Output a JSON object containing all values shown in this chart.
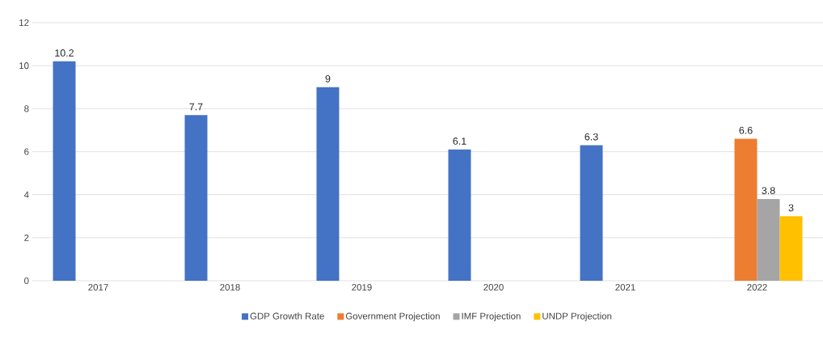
{
  "chart_data": {
    "type": "bar",
    "categories": [
      "2017",
      "2018",
      "2019",
      "2020",
      "2021",
      "2022"
    ],
    "series": [
      {
        "name": "GDP Growth Rate",
        "color": "#4472c4",
        "values": [
          10.2,
          7.7,
          9,
          6.1,
          6.3,
          null
        ]
      },
      {
        "name": "Government Projection",
        "color": "#ed7d31",
        "values": [
          null,
          null,
          null,
          null,
          null,
          6.6
        ]
      },
      {
        "name": "IMF Projection",
        "color": "#a5a5a5",
        "values": [
          null,
          null,
          null,
          null,
          null,
          3.8
        ]
      },
      {
        "name": "UNDP Projection",
        "color": "#ffc000",
        "values": [
          null,
          null,
          null,
          null,
          null,
          3
        ]
      }
    ],
    "ylim": [
      0,
      12
    ],
    "yticks": [
      0,
      2,
      4,
      6,
      8,
      10,
      12
    ],
    "grid": "y",
    "legend": "bottom",
    "data_labels": true
  }
}
